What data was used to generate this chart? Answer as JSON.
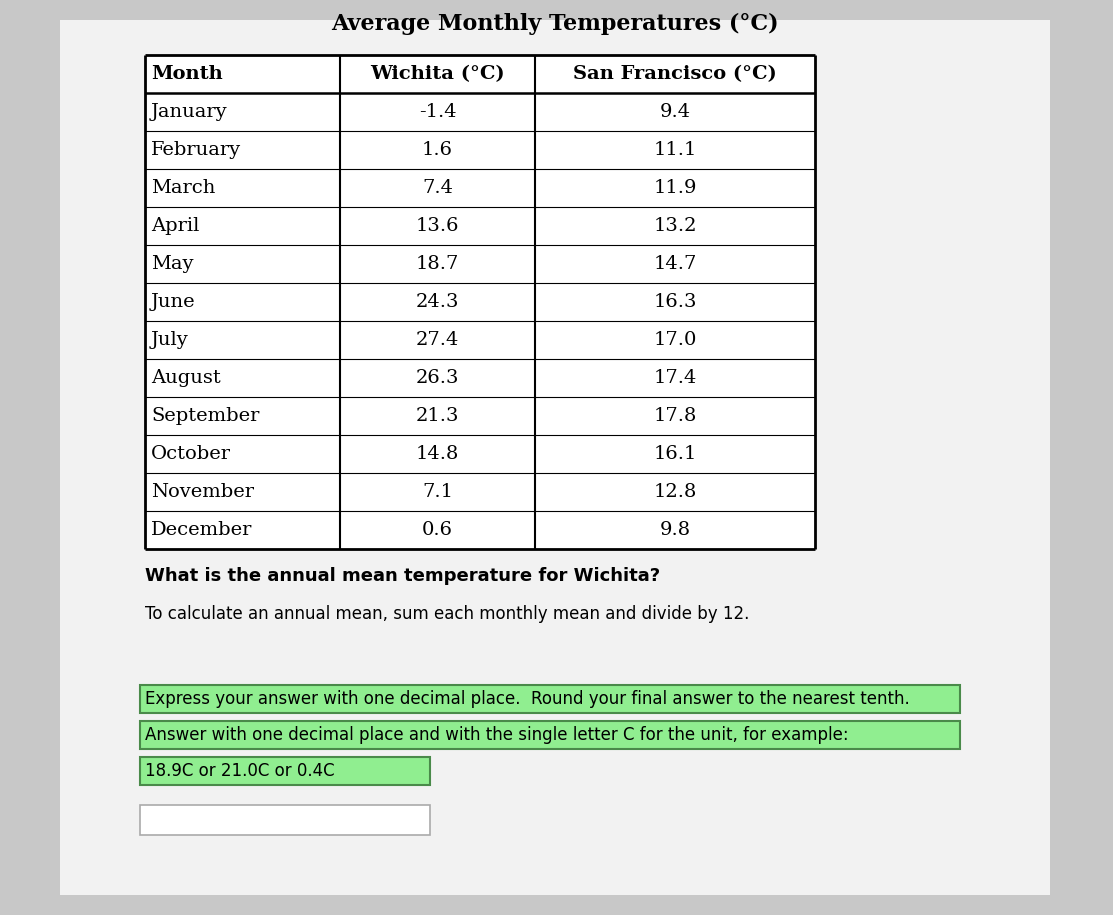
{
  "title": "Average Monthly Temperatures (°C)",
  "col_headers": [
    "Month",
    "Wichita (°C)",
    "San Francisco (°C)"
  ],
  "months": [
    "January",
    "February",
    "March",
    "April",
    "May",
    "June",
    "July",
    "August",
    "September",
    "October",
    "November",
    "December"
  ],
  "wichita": [
    -1.4,
    1.6,
    7.4,
    13.6,
    18.7,
    24.3,
    27.4,
    26.3,
    21.3,
    14.8,
    7.1,
    0.6
  ],
  "san_francisco": [
    9.4,
    11.1,
    11.9,
    13.2,
    14.7,
    16.3,
    17.0,
    17.4,
    17.8,
    16.1,
    12.8,
    9.8
  ],
  "question_bold": "What is the annual mean temperature for Wichita?",
  "instruction1": "To calculate an annual mean, sum each monthly mean and divide by 12.",
  "highlight_text1": "Express your answer with one decimal place.  Round your final answer to the nearest tenth.",
  "highlight_text2": "Answer with one decimal place and with the single letter C for the unit, for example:",
  "highlight_text3": "18.9C or 21.0C or 0.4C",
  "bg_color": "#c8c8c8",
  "page_color": "#f2f2f2",
  "table_bg": "#ffffff",
  "highlight_color": "#90ee90",
  "border_color": "#000000",
  "text_color": "#000000",
  "title_fontsize": 16,
  "header_fontsize": 14,
  "cell_fontsize": 14,
  "question_fontsize": 13,
  "instr_fontsize": 12,
  "highlight_fontsize": 12
}
